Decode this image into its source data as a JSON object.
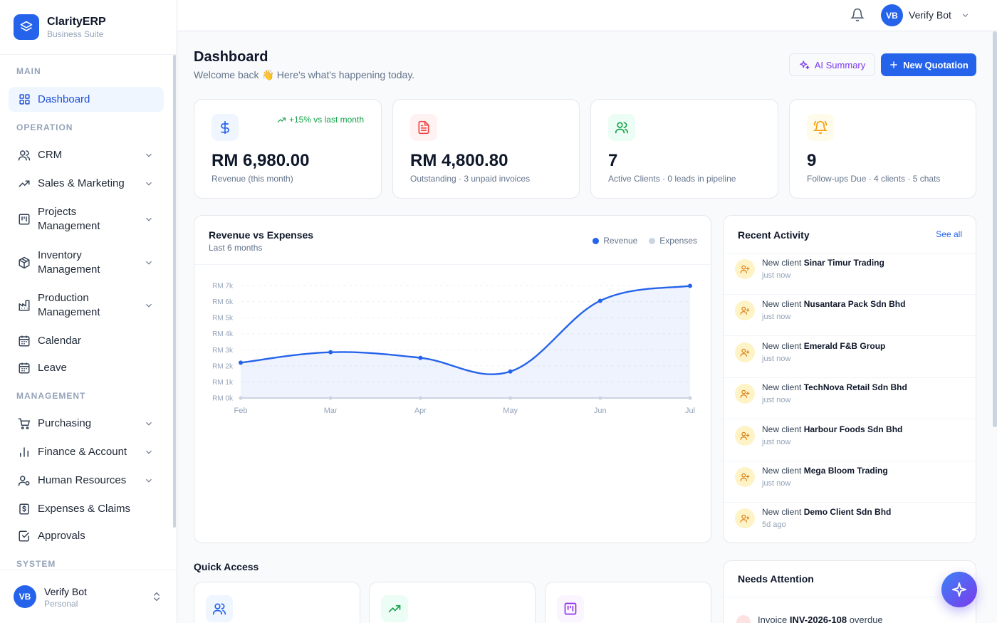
{
  "brand": {
    "name": "ClarityERP",
    "subtitle": "Business Suite"
  },
  "sidebar": {
    "sections": {
      "main": "MAIN",
      "operation": "OPERATION",
      "management": "MANAGEMENT",
      "system": "SYSTEM"
    },
    "items": {
      "dashboard": "Dashboard",
      "crm": "CRM",
      "sales": "Sales & Marketing",
      "projects_1": "Projects",
      "projects_2": "Management",
      "inventory_1": "Inventory",
      "inventory_2": "Management",
      "production_1": "Production",
      "production_2": "Management",
      "calendar": "Calendar",
      "leave": "Leave",
      "purchasing": "Purchasing",
      "finance": "Finance & Account",
      "hr": "Human Resources",
      "expenses": "Expenses & Claims",
      "approvals": "Approvals"
    },
    "user": {
      "initials": "VB",
      "name": "Verify Bot",
      "workspace": "Personal"
    }
  },
  "topbar": {
    "initials": "VB",
    "name": "Verify Bot"
  },
  "header": {
    "title": "Dashboard",
    "subtitle": "Welcome back 👋 Here's what's happening today.",
    "ai_button": "AI Summary",
    "new_button": "New Quotation"
  },
  "stats": [
    {
      "value": "RM 6,980.00",
      "label": "Revenue (this month)",
      "trend": "+15% vs last month"
    },
    {
      "value": "RM 4,800.80",
      "label": "Outstanding · 3 unpaid invoices"
    },
    {
      "value": "7",
      "label": "Active Clients · 0 leads in pipeline"
    },
    {
      "value": "9",
      "label": "Follow-ups Due · 4 clients · 5 chats"
    }
  ],
  "colors": {
    "accent": "#2563eb",
    "revenue": "#2563eb",
    "expenses": "#cbd5e1"
  },
  "chart_data": {
    "type": "area",
    "title": "Revenue vs Expenses",
    "subtitle": "Last 6 months",
    "categories": [
      "Feb",
      "Mar",
      "Apr",
      "May",
      "Jun",
      "Jul"
    ],
    "y_ticks": [
      "RM 0k",
      "RM 1k",
      "RM 2k",
      "RM 3k",
      "RM 4k",
      "RM 5k",
      "RM 6k",
      "RM 7k"
    ],
    "ylim": [
      0,
      7000
    ],
    "series": [
      {
        "name": "Revenue",
        "values": [
          2200,
          2850,
          2500,
          1650,
          6050,
          6980
        ]
      },
      {
        "name": "Expenses",
        "values": [
          0,
          0,
          0,
          0,
          0,
          0
        ]
      }
    ],
    "grid": true,
    "legend": "top-right"
  },
  "activity": {
    "title": "Recent Activity",
    "see_all": "See all",
    "prefix": "New client",
    "items": [
      {
        "name": "Sinar Timur Trading",
        "time": "just now"
      },
      {
        "name": "Nusantara Pack Sdn Bhd",
        "time": "just now"
      },
      {
        "name": "Emerald F&B Group",
        "time": "just now"
      },
      {
        "name": "TechNova Retail Sdn Bhd",
        "time": "just now"
      },
      {
        "name": "Harbour Foods Sdn Bhd",
        "time": "just now"
      },
      {
        "name": "Mega Bloom Trading",
        "time": "just now"
      },
      {
        "name": "Demo Client Sdn Bhd",
        "time": "5d ago"
      }
    ]
  },
  "quick_access": {
    "title": "Quick Access"
  },
  "attention": {
    "title": "Needs Attention",
    "row_prefix": "Invoice",
    "row_id": "INV-2026-108",
    "row_suffix": "overdue"
  }
}
